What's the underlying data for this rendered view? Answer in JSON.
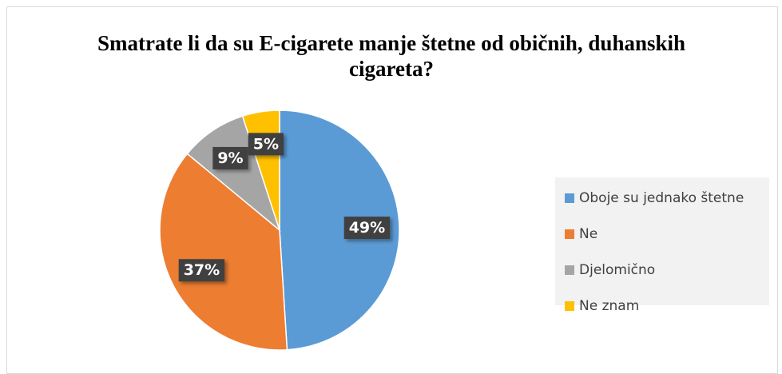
{
  "chart_data": {
    "type": "pie",
    "title": "Smatrate li da su E-cigarete manje štetne od običnih, duhanskih cigareta?",
    "categories": [
      "Oboje su jednako štetne",
      "Ne",
      "Djelomično",
      "Ne znam"
    ],
    "values": [
      49,
      37,
      9,
      5
    ],
    "value_labels": [
      "49%",
      "37%",
      "9%",
      "5%"
    ],
    "colors": [
      "#5b9bd5",
      "#ed7d31",
      "#a5a5a5",
      "#ffc000"
    ],
    "legend": "right"
  }
}
